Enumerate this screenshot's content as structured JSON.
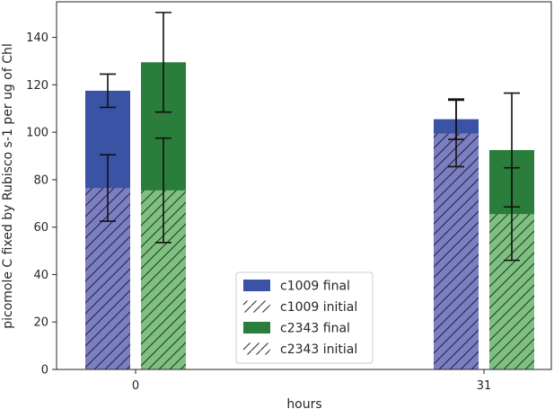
{
  "chart_data": {
    "type": "bar",
    "xlabel": "hours",
    "ylabel": "picomole C fixed by Rubisco s-1 per ug of Chl",
    "categories": [
      "0",
      "31"
    ],
    "ylim": [
      0,
      155
    ],
    "yticks": [
      0,
      20,
      40,
      60,
      80,
      100,
      120,
      140
    ],
    "grid": false,
    "legend_position": "bottom-center",
    "series": [
      {
        "name": "c1009 final",
        "color": "#3a53a4",
        "hatch": false,
        "values": [
          117.5,
          105.5
        ],
        "errors": [
          7,
          8.5
        ]
      },
      {
        "name": "c1009 initial",
        "color": "#7b7ec0",
        "hatch": true,
        "values": [
          76.5,
          99.5
        ],
        "errors": [
          14,
          14
        ]
      },
      {
        "name": "c2343 final",
        "color": "#2a7d3b",
        "hatch": false,
        "values": [
          129.5,
          92.5
        ],
        "errors": [
          21,
          24
        ]
      },
      {
        "name": "c2343 initial",
        "color": "#7fbf7f",
        "hatch": true,
        "values": [
          75.5,
          65.5
        ],
        "errors": [
          22,
          19.5
        ]
      }
    ]
  }
}
